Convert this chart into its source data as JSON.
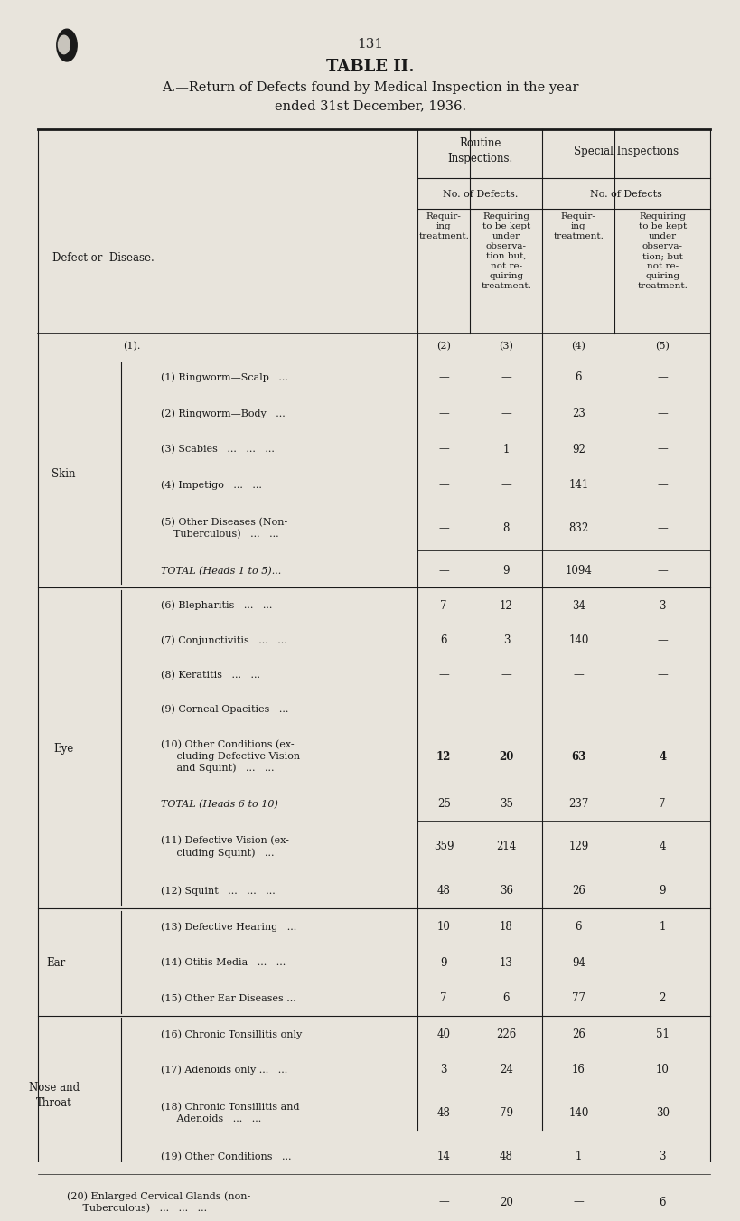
{
  "page_number": "131",
  "title": "TABLE II.",
  "subtitle": "A.—Return of Defects found by Medical Inspection in the year\nended 31st December, 1936.",
  "bg_color": "#e8e4dc",
  "col_headers": {
    "routine_inspections": "Routine\nInspections.",
    "special_inspections": "Special Inspections",
    "no_of_defects_routine": "No. of Defects.",
    "no_of_defects_special": "No. of Defects",
    "col2_label": "Requir-\ning\ntreatment.",
    "col3_label": "Requiring\nto be kept\nunder\nobserva-\ntion but,\nnot re-\nquiring\ntreatment.",
    "col4_label": "Requir-\ning\ntreatment.",
    "col5_label": "Requiring\nto be kept\nunder\nobserva-\ntion; but\nnot re-\nquiring\ntreatment.",
    "col_nums": [
      "(1).",
      "(2)",
      "(3)",
      "(4)",
      "(5)"
    ]
  },
  "skin_rows": [
    {
      "label": "(1) Ringworm—Scalp   ...",
      "c2": "—",
      "c3": "—",
      "c4": "6",
      "c5": "—"
    },
    {
      "label": "(2) Ringworm—Body   ...",
      "c2": "—",
      "c3": "—",
      "c4": "23",
      "c5": "—"
    },
    {
      "label": "(3) Scabies   ...   ...   ...",
      "c2": "—",
      "c3": "1",
      "c4": "92",
      "c5": "—"
    },
    {
      "label": "(4) Impetigo   ...   ...",
      "c2": "—",
      "c3": "—",
      "c4": "141",
      "c5": "—"
    },
    {
      "label": "(5) Other Diseases (Non-\n    Tuberculous)   ...   ...",
      "c2": "—",
      "c3": "8",
      "c4": "832",
      "c5": "—",
      "lines": 2
    }
  ],
  "skin_total": {
    "label": "TOTAL (Heads 1 to 5)...",
    "c2": "—",
    "c3": "9",
    "c4": "1094",
    "c5": "—"
  },
  "eye_rows": [
    {
      "label": "(6) Blepharitis   ...   ...",
      "c2": "7",
      "c3": "12",
      "c4": "34",
      "c5": "3"
    },
    {
      "label": "(7) Conjunctivitis   ...   ...",
      "c2": "6",
      "c3": "3",
      "c4": "140",
      "c5": "—"
    },
    {
      "label": "(8) Keratitis   ...   ...",
      "c2": "—",
      "c3": "—",
      "c4": "—",
      "c5": "—"
    },
    {
      "label": "(9) Corneal Opacities   ...",
      "c2": "—",
      "c3": "—",
      "c4": "—",
      "c5": "—"
    },
    {
      "label": "(10) Other Conditions (ex-\n     cluding Defective Vision\n     and Squint)   ...   ...",
      "c2": "12",
      "c3": "20",
      "c4": "63",
      "c5": "4",
      "bold": true,
      "lines": 3
    }
  ],
  "eye_total": {
    "label": "TOTAL (Heads 6 to 10)",
    "c2": "25",
    "c3": "35",
    "c4": "237",
    "c5": "7"
  },
  "eye_extra_rows": [
    {
      "label": "(11) Defective Vision (ex-\n     cluding Squint)   ...",
      "c2": "359",
      "c3": "214",
      "c4": "129",
      "c5": "4",
      "lines": 2
    },
    {
      "label": "(12) Squint   ...   ...   ...",
      "c2": "48",
      "c3": "36",
      "c4": "26",
      "c5": "9"
    }
  ],
  "ear_rows": [
    {
      "label": "(13) Defective Hearing   ...",
      "c2": "10",
      "c3": "18",
      "c4": "6",
      "c5": "1"
    },
    {
      "label": "(14) Otitis Media   ...   ...",
      "c2": "9",
      "c3": "13",
      "c4": "94",
      "c5": "—"
    },
    {
      "label": "(15) Other Ear Diseases ...",
      "c2": "7",
      "c3": "6",
      "c4": "77",
      "c5": "2"
    }
  ],
  "nose_throat_rows": [
    {
      "label": "(16) Chronic Tonsillitis only",
      "c2": "40",
      "c3": "226",
      "c4": "26",
      "c5": "51"
    },
    {
      "label": "(17) Adenoids only ...   ...",
      "c2": "3",
      "c3": "24",
      "c4": "16",
      "c5": "10"
    },
    {
      "label": "(18) Chronic Tonsillitis and\n     Adenoids   ...   ...",
      "c2": "48",
      "c3": "79",
      "c4": "140",
      "c5": "30",
      "lines": 2
    },
    {
      "label": "(19) Other Conditions   ...",
      "c2": "14",
      "c3": "48",
      "c4": "1",
      "c5": "3"
    }
  ],
  "last_row": {
    "label": "(20) Enlarged Cervical Glands (non-\n     Tuberculous)   ...   ...   ...",
    "c2": "—",
    "c3": "20",
    "c4": "—",
    "c5": "6",
    "lines": 2
  }
}
